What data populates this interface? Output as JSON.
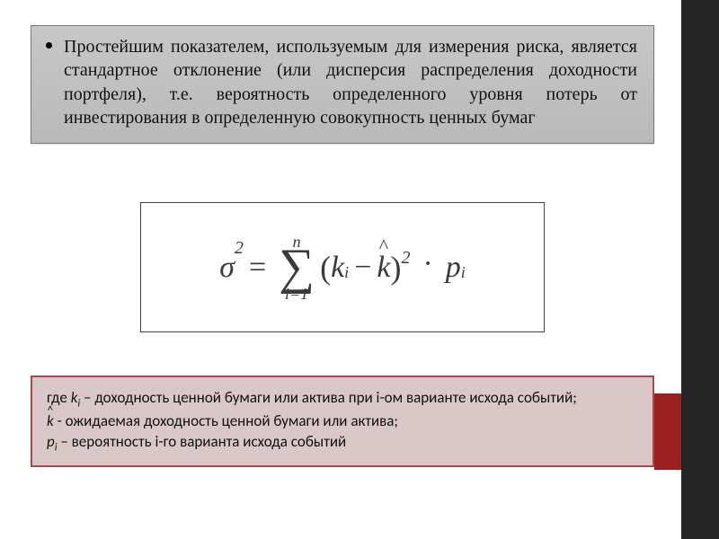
{
  "colors": {
    "right_stripe": "#262626",
    "right_accent": "#9a1f1f",
    "main_box_bg_top": "#c7c7c7",
    "main_box_bg_bottom": "#b9b9b9",
    "main_box_border": "#777777",
    "legend_bg": "#d9c8c7",
    "legend_border": "#a34c48",
    "text": "#111111",
    "formula_text": "#3a3a3a"
  },
  "typography": {
    "main_fontsize": 20,
    "formula_fontsize": 34,
    "legend_fontsize": 17,
    "main_family": "Georgia",
    "legend_family": "Calibri"
  },
  "main": {
    "text": "Простейшим показателем, используемым для измерения риска, является стандартное отклонение (или дисперсия распределения доходности портфеля), т.е. вероятность определенного уровня потерь от инвестирования в определенную совокупность ценных бумаг"
  },
  "formula": {
    "lhs_base": "σ",
    "lhs_exp": "2",
    "eq": "=",
    "sum_upper": "n",
    "sum_lower": "i=1",
    "k": "k",
    "k_sub": "i",
    "minus": "−",
    "khat": "k",
    "exp2": "2",
    "dot": "·",
    "p": "p",
    "p_sub": "i"
  },
  "legend": {
    "line1_prefix": "где ",
    "line1_var": "k",
    "line1_sub": "i",
    "line1_rest": " – доходность ценной бумаги или актива при i-ом варианте исхода событий;",
    "line2_var": "k",
    "line2_rest": " - ожидаемая доходность ценной бумаги или актива;",
    "line3_var": "p",
    "line3_sub": "i",
    "line3_rest": " – вероятность i-го варианта исхода событий"
  }
}
